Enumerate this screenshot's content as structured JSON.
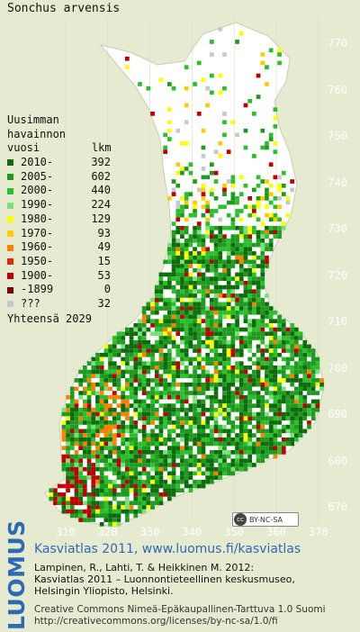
{
  "map": {
    "species": "Sonchus arvensis",
    "background_color": "#e6ead0",
    "land_color": "#ffffff",
    "y_ticks": [
      "770",
      "760",
      "750",
      "740",
      "730",
      "720",
      "710",
      "700",
      "690",
      "680",
      "670"
    ],
    "x_ticks": [
      "310",
      "320",
      "330",
      "340",
      "350",
      "360",
      "370"
    ]
  },
  "legend": {
    "header_line1": "Uusimman",
    "header_line2": "havainnon",
    "header_line3": "vuosi        lkm",
    "rows": [
      {
        "label": "2010-",
        "count": "392",
        "color": "#0d6b0d"
      },
      {
        "label": "2005-",
        "count": "602",
        "color": "#1e9b1e"
      },
      {
        "label": "2000-",
        "count": "440",
        "color": "#2bbf2b"
      },
      {
        "label": "1990-",
        "count": "224",
        "color": "#7be07b"
      },
      {
        "label": "1980-",
        "count": "129",
        "color": "#ffff00"
      },
      {
        "label": "1970-",
        "count": "93",
        "color": "#ffcc00"
      },
      {
        "label": "1960-",
        "count": "49",
        "color": "#ff8000"
      },
      {
        "label": "1950-",
        "count": "15",
        "color": "#e02a00"
      },
      {
        "label": "1900-",
        "count": "53",
        "color": "#c00000"
      },
      {
        "label": "-1899",
        "count": "0",
        "color": "#7a0000"
      },
      {
        "label": "???",
        "count": "32",
        "color": "#c8c8c8"
      }
    ],
    "total_label": "Yhteensä",
    "total_count": "2029"
  },
  "license_badge": "BY-NC-SA",
  "footer": {
    "brand": "LUOMUS",
    "title": "Kasviatlas 2011, www.luomus.fi/kasviatlas",
    "citation_line1": "Lampinen, R., Lahti, T. & Heikkinen M. 2012:",
    "citation_line2": "Kasviatlas 2011 – Luonnontieteellinen keskusmuseo,",
    "citation_line3": "Helsingin Yliopisto, Helsinki.",
    "license_line1": "Creative Commons Nimeä-Epäkaupallinen-Tarttuva 1.0 Suomi",
    "license_line2": "http://creativecommons.org/licenses/by-nc-sa/1.0/fi"
  }
}
